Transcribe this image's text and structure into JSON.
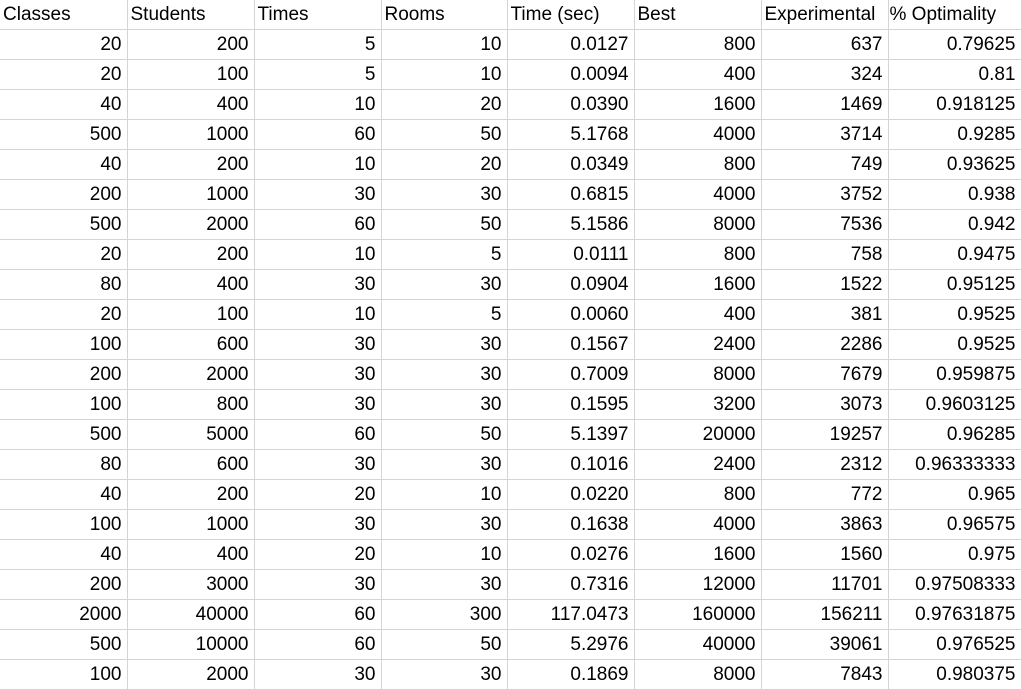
{
  "headers": [
    "Classes",
    "Students",
    "Times",
    "Rooms",
    "Time (sec)",
    "Best",
    "Experimental",
    "% Optimality"
  ],
  "rows": [
    [
      "20",
      "200",
      "5",
      "10",
      "0.0127",
      "800",
      "637",
      "0.79625"
    ],
    [
      "20",
      "100",
      "5",
      "10",
      "0.0094",
      "400",
      "324",
      "0.81"
    ],
    [
      "40",
      "400",
      "10",
      "20",
      "0.0390",
      "1600",
      "1469",
      "0.918125"
    ],
    [
      "500",
      "1000",
      "60",
      "50",
      "5.1768",
      "4000",
      "3714",
      "0.9285"
    ],
    [
      "40",
      "200",
      "10",
      "20",
      "0.0349",
      "800",
      "749",
      "0.93625"
    ],
    [
      "200",
      "1000",
      "30",
      "30",
      "0.6815",
      "4000",
      "3752",
      "0.938"
    ],
    [
      "500",
      "2000",
      "60",
      "50",
      "5.1586",
      "8000",
      "7536",
      "0.942"
    ],
    [
      "20",
      "200",
      "10",
      "5",
      "0.0111",
      "800",
      "758",
      "0.9475"
    ],
    [
      "80",
      "400",
      "30",
      "30",
      "0.0904",
      "1600",
      "1522",
      "0.95125"
    ],
    [
      "20",
      "100",
      "10",
      "5",
      "0.0060",
      "400",
      "381",
      "0.9525"
    ],
    [
      "100",
      "600",
      "30",
      "30",
      "0.1567",
      "2400",
      "2286",
      "0.9525"
    ],
    [
      "200",
      "2000",
      "30",
      "30",
      "0.7009",
      "8000",
      "7679",
      "0.959875"
    ],
    [
      "100",
      "800",
      "30",
      "30",
      "0.1595",
      "3200",
      "3073",
      "0.9603125"
    ],
    [
      "500",
      "5000",
      "60",
      "50",
      "5.1397",
      "20000",
      "19257",
      "0.96285"
    ],
    [
      "80",
      "600",
      "30",
      "30",
      "0.1016",
      "2400",
      "2312",
      "0.96333333"
    ],
    [
      "40",
      "200",
      "20",
      "10",
      "0.0220",
      "800",
      "772",
      "0.965"
    ],
    [
      "100",
      "1000",
      "30",
      "30",
      "0.1638",
      "4000",
      "3863",
      "0.96575"
    ],
    [
      "40",
      "400",
      "20",
      "10",
      "0.0276",
      "1600",
      "1560",
      "0.975"
    ],
    [
      "200",
      "3000",
      "30",
      "30",
      "0.7316",
      "12000",
      "11701",
      "0.97508333"
    ],
    [
      "2000",
      "40000",
      "60",
      "300",
      "117.0473",
      "160000",
      "156211",
      "0.97631875"
    ],
    [
      "500",
      "10000",
      "60",
      "50",
      "5.2976",
      "40000",
      "39061",
      "0.976525"
    ],
    [
      "100",
      "2000",
      "30",
      "30",
      "0.1869",
      "8000",
      "7843",
      "0.980375"
    ]
  ]
}
